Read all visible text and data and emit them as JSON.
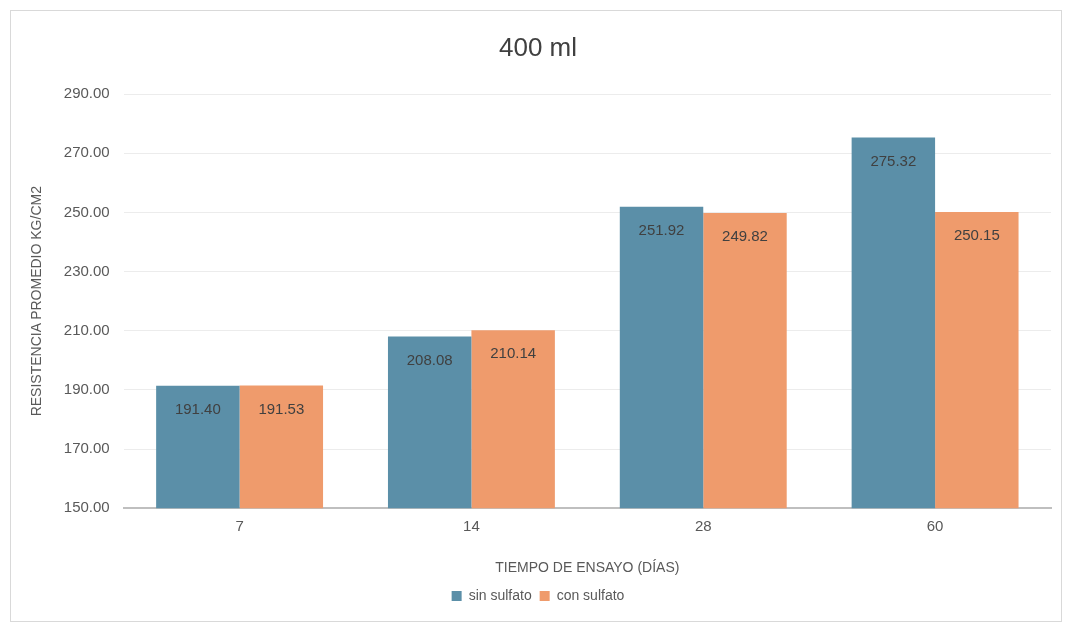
{
  "chart_data": {
    "type": "bar",
    "title": "400 ml",
    "xlabel": "TIEMPO DE ENSAYO (DÍAS)",
    "ylabel": "RESISTENCIA PROMEDIO KG/CM2",
    "categories": [
      "7",
      "14",
      "28",
      "60"
    ],
    "series": [
      {
        "name": "sin sulfato",
        "color": "#5b8fa8",
        "values": [
          191.4,
          208.08,
          251.92,
          275.32
        ],
        "value_labels": [
          "191.40",
          "208.08",
          "251.92",
          "275.32"
        ]
      },
      {
        "name": "con sulfato",
        "color": "#ef9b6c",
        "values": [
          191.53,
          210.14,
          249.82,
          250.15
        ],
        "value_labels": [
          "191.53",
          "210.14",
          "249.82",
          "250.15"
        ]
      }
    ],
    "ylim": [
      150,
      290
    ],
    "yticks": [
      {
        "value": 150,
        "label": "150.00"
      },
      {
        "value": 170,
        "label": "170.00"
      },
      {
        "value": 190,
        "label": "190.00"
      },
      {
        "value": 210,
        "label": "210.00"
      },
      {
        "value": 230,
        "label": "230.00"
      },
      {
        "value": 250,
        "label": "250.00"
      },
      {
        "value": 270,
        "label": "270.00"
      },
      {
        "value": 290,
        "label": "290.00"
      }
    ],
    "grid": "y",
    "legend": "bottom"
  }
}
